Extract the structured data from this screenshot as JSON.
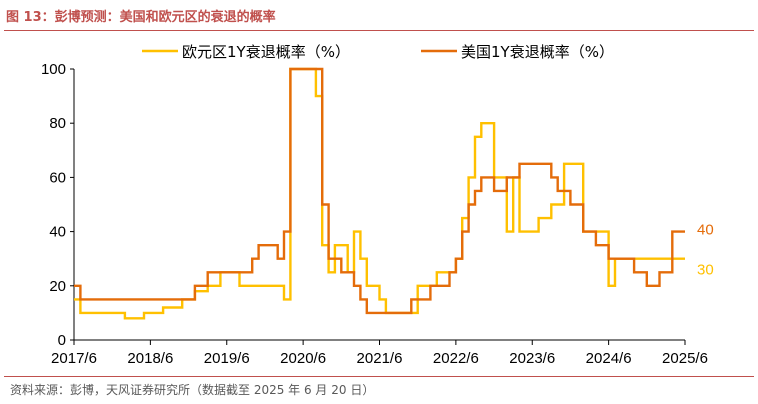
{
  "header": {
    "title": "图 13：彭博预测：美国和欧元区的衰退的概率"
  },
  "footer": {
    "source": "资料来源：彭博，天风证券研究所（数据截至 2025 年 6 月 20 日）"
  },
  "chart_data": {
    "type": "line",
    "title": "",
    "xlabel": "",
    "ylabel": "",
    "ylim": [
      0,
      100
    ],
    "yticks": [
      0,
      20,
      40,
      60,
      80,
      100
    ],
    "xlim": [
      "2017/6",
      "2025/6"
    ],
    "xticks": [
      "2017/6",
      "2018/6",
      "2019/6",
      "2020/6",
      "2021/6",
      "2022/6",
      "2023/6",
      "2024/6",
      "2025/6"
    ],
    "grid": false,
    "legend": "top",
    "series": [
      {
        "name": "欧元区1Y衰退概率（%）",
        "color": "#ffc000",
        "end_label": "30",
        "step": true,
        "points": [
          [
            "2017/6",
            15
          ],
          [
            "2017/7",
            10
          ],
          [
            "2018/2",
            8
          ],
          [
            "2018/5",
            10
          ],
          [
            "2018/8",
            12
          ],
          [
            "2018/11",
            15
          ],
          [
            "2019/1",
            18
          ],
          [
            "2019/3",
            20
          ],
          [
            "2019/5",
            25
          ],
          [
            "2019/8",
            20
          ],
          [
            "2020/1",
            20
          ],
          [
            "2020/3",
            15
          ],
          [
            "2020/4",
            100
          ],
          [
            "2020/8",
            90
          ],
          [
            "2020/9",
            35
          ],
          [
            "2020/10",
            25
          ],
          [
            "2020/11",
            35
          ],
          [
            "2021/1",
            25
          ],
          [
            "2021/2",
            40
          ],
          [
            "2021/3",
            30
          ],
          [
            "2021/4",
            20
          ],
          [
            "2021/6",
            15
          ],
          [
            "2021/7",
            10
          ],
          [
            "2021/12",
            20
          ],
          [
            "2022/3",
            25
          ],
          [
            "2022/6",
            30
          ],
          [
            "2022/7",
            45
          ],
          [
            "2022/8",
            60
          ],
          [
            "2022/9",
            75
          ],
          [
            "2022/10",
            80
          ],
          [
            "2022/12",
            60
          ],
          [
            "2023/2",
            40
          ],
          [
            "2023/3",
            60
          ],
          [
            "2023/4",
            40
          ],
          [
            "2023/7",
            45
          ],
          [
            "2023/9",
            50
          ],
          [
            "2023/11",
            65
          ],
          [
            "2024/2",
            40
          ],
          [
            "2024/4",
            40
          ],
          [
            "2024/6",
            20
          ],
          [
            "2024/7",
            30
          ],
          [
            "2025/6",
            30
          ]
        ]
      },
      {
        "name": "美国1Y衰退概率（%）",
        "color": "#e46c0a",
        "end_label": "40",
        "step": true,
        "points": [
          [
            "2017/6",
            20
          ],
          [
            "2017/7",
            15
          ],
          [
            "2019/1",
            20
          ],
          [
            "2019/3",
            25
          ],
          [
            "2019/10",
            30
          ],
          [
            "2019/11",
            35
          ],
          [
            "2020/2",
            30
          ],
          [
            "2020/3",
            40
          ],
          [
            "2020/4",
            100
          ],
          [
            "2020/9",
            50
          ],
          [
            "2020/10",
            30
          ],
          [
            "2020/12",
            25
          ],
          [
            "2021/2",
            20
          ],
          [
            "2021/3",
            15
          ],
          [
            "2021/4",
            10
          ],
          [
            "2021/11",
            15
          ],
          [
            "2022/2",
            20
          ],
          [
            "2022/5",
            25
          ],
          [
            "2022/6",
            30
          ],
          [
            "2022/7",
            40
          ],
          [
            "2022/8",
            50
          ],
          [
            "2022/9",
            55
          ],
          [
            "2022/10",
            60
          ],
          [
            "2022/12",
            55
          ],
          [
            "2023/2",
            60
          ],
          [
            "2023/4",
            65
          ],
          [
            "2023/9",
            60
          ],
          [
            "2023/10",
            55
          ],
          [
            "2023/12",
            50
          ],
          [
            "2024/2",
            40
          ],
          [
            "2024/4",
            35
          ],
          [
            "2024/6",
            30
          ],
          [
            "2024/10",
            25
          ],
          [
            "2024/12",
            20
          ],
          [
            "2025/2",
            25
          ],
          [
            "2025/4",
            40
          ],
          [
            "2025/6",
            40
          ]
        ]
      }
    ]
  }
}
